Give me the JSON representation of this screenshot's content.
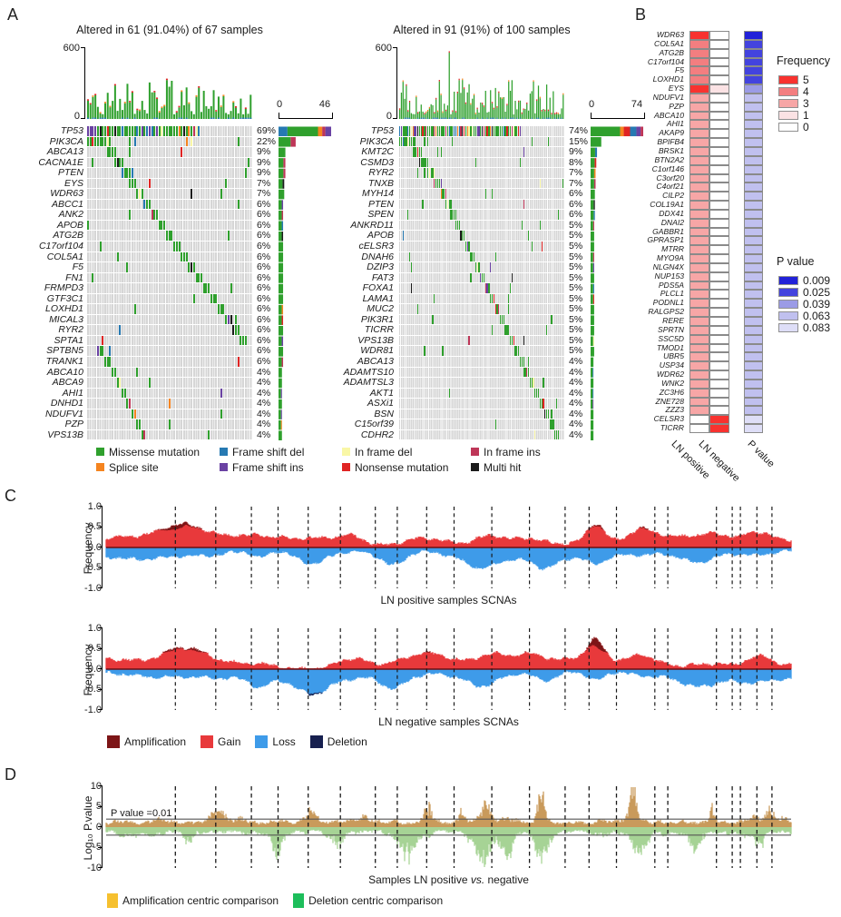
{
  "panels": {
    "a": "A",
    "b": "B",
    "c": "C",
    "d": "D"
  },
  "colors": {
    "mutation": {
      "missense": "#2FA02D",
      "splice": "#F5841F",
      "fs_del": "#2679B2",
      "fs_ins": "#6A42A3",
      "if_del": "#F9F7A6",
      "nonsense": "#E02423",
      "if_ins": "#BE3658",
      "multi": "#1C1C1C"
    },
    "grid_bg": "#D6D6D6",
    "scna": {
      "amplification": "#7D1517",
      "gain": "#E8393B",
      "loss": "#3E9BE9",
      "deletion": "#17204F"
    },
    "diff": {
      "up_bars": "#C99A5B",
      "down_bars": "#A6D395"
    }
  },
  "mutation_legend": [
    [
      "Missense mutation",
      "missense"
    ],
    [
      "Frame shift del",
      "fs_del"
    ],
    [
      "In frame del",
      "if_del"
    ],
    [
      "In frame ins",
      "if_ins"
    ],
    [
      "Splice site",
      "splice"
    ],
    [
      "Frame shift ins",
      "fs_ins"
    ],
    [
      "Nonsense mutation",
      "nonsense"
    ],
    [
      "Multi hit",
      "multi"
    ]
  ],
  "chromosome_boundaries": [
    0.101,
    0.16,
    0.212,
    0.251,
    0.295,
    0.342,
    0.393,
    0.425,
    0.468,
    0.508,
    0.563,
    0.618,
    0.67,
    0.705,
    0.745,
    0.801,
    0.82,
    0.891,
    0.914,
    0.926,
    0.95,
    0.972
  ],
  "chart_data": [
    {
      "id": "oncoprint-ln-positive",
      "type": "heatmap",
      "title": "Altered in 61 (91.04%) of 67 samples",
      "n_samples": 67,
      "tmb_axis": {
        "max": "600",
        "min": "0"
      },
      "bar_axis": {
        "min": "0",
        "max": "46"
      },
      "tp53_bar_segments": [
        [
          "fs_del",
          0.17
        ],
        [
          "missense",
          0.58
        ],
        [
          "splice",
          0.08
        ],
        [
          "if_ins",
          0.06
        ],
        [
          "fs_ins",
          0.11
        ]
      ],
      "genes": [
        [
          "TP53",
          "69%"
        ],
        [
          "PIK3CA",
          "22%"
        ],
        [
          "ABCA13",
          "9%"
        ],
        [
          "CACNA1E",
          "9%"
        ],
        [
          "PTEN",
          "9%"
        ],
        [
          "EYS",
          "7%"
        ],
        [
          "WDR63",
          "7%"
        ],
        [
          "ABCC1",
          "6%"
        ],
        [
          "ANK2",
          "6%"
        ],
        [
          "APOB",
          "6%"
        ],
        [
          "ATG2B",
          "6%"
        ],
        [
          "C17orf104",
          "6%"
        ],
        [
          "COL5A1",
          "6%"
        ],
        [
          "F5",
          "6%"
        ],
        [
          "FN1",
          "6%"
        ],
        [
          "FRMPD3",
          "6%"
        ],
        [
          "GTF3C1",
          "6%"
        ],
        [
          "LOXHD1",
          "6%"
        ],
        [
          "MICAL3",
          "6%"
        ],
        [
          "RYR2",
          "6%"
        ],
        [
          "SPTA1",
          "6%"
        ],
        [
          "SPTBN5",
          "6%"
        ],
        [
          "TRANK1",
          "6%"
        ],
        [
          "ABCA10",
          "4%"
        ],
        [
          "ABCA9",
          "4%"
        ],
        [
          "AHI1",
          "4%"
        ],
        [
          "DNHD1",
          "4%"
        ],
        [
          "NDUFV1",
          "4%"
        ],
        [
          "PZP",
          "4%"
        ],
        [
          "VPS13B",
          "4%"
        ]
      ]
    },
    {
      "id": "oncoprint-ln-negative",
      "type": "heatmap",
      "title": "Altered in 91 (91%) of 100 samples",
      "n_samples": 100,
      "tmb_axis": {
        "max": "600",
        "min": "0"
      },
      "bar_axis": {
        "min": "0",
        "max": "74"
      },
      "tp53_bar_segments": [
        [
          "missense",
          0.56
        ],
        [
          "splice",
          0.07
        ],
        [
          "nonsense",
          0.12
        ],
        [
          "fs_del",
          0.12
        ],
        [
          "fs_ins",
          0.08
        ],
        [
          "if_ins",
          0.05
        ]
      ],
      "genes": [
        [
          "TP53",
          "74%"
        ],
        [
          "PIK3CA",
          "15%"
        ],
        [
          "KMT2C",
          "9%"
        ],
        [
          "CSMD3",
          "8%"
        ],
        [
          "RYR2",
          "7%"
        ],
        [
          "TNXB",
          "7%"
        ],
        [
          "MYH14",
          "6%"
        ],
        [
          "PTEN",
          "6%"
        ],
        [
          "SPEN",
          "6%"
        ],
        [
          "ANKRD11",
          "5%"
        ],
        [
          "APOB",
          "5%"
        ],
        [
          "cELSR3",
          "5%"
        ],
        [
          "DNAH6",
          "5%"
        ],
        [
          "DZIP3",
          "5%"
        ],
        [
          "FAT3",
          "5%"
        ],
        [
          "FOXA1",
          "5%"
        ],
        [
          "LAMA1",
          "5%"
        ],
        [
          "MUC2",
          "5%"
        ],
        [
          "PIK3R1",
          "5%"
        ],
        [
          "TICRR",
          "5%"
        ],
        [
          "VPS13B",
          "5%"
        ],
        [
          "WDR81",
          "5%"
        ],
        [
          "ABCA13",
          "4%"
        ],
        [
          "ADAMTS10",
          "4%"
        ],
        [
          "ADAMTSL3",
          "4%"
        ],
        [
          "AKT1",
          "4%"
        ],
        [
          "ASXi1",
          "4%"
        ],
        [
          "BSN",
          "4%"
        ],
        [
          "C15orf39",
          "4%"
        ],
        [
          "CDHR2",
          "4%"
        ]
      ]
    },
    {
      "id": "differential-mutation-heatmap",
      "type": "heatmap",
      "columns": [
        "LN positive",
        "LN negative",
        "P value"
      ],
      "frequency_legend": {
        "title": "Frequency",
        "levels": [
          [
            "5",
            "#F8322F"
          ],
          [
            "4",
            "#F37E80"
          ],
          [
            "3",
            "#F7A6A6"
          ],
          [
            "1",
            "#FBE2E4"
          ],
          [
            "0",
            "#FFFFFF"
          ]
        ]
      },
      "pvalue_legend": {
        "title": "P value",
        "levels": [
          [
            "0.009",
            "#2121D8"
          ],
          [
            "0.025",
            "#4343DE"
          ],
          [
            "0.039",
            "#9B9BE6"
          ],
          [
            "0.063",
            "#C0C0EF"
          ],
          [
            "0.083",
            "#DEDEF7"
          ]
        ]
      },
      "rows": [
        [
          "WDR63",
          "5",
          "0",
          "0.009"
        ],
        [
          "COL5A1",
          "4",
          "0",
          "0.025"
        ],
        [
          "ATG2B",
          "4",
          "0",
          "0.025"
        ],
        [
          "C17orf104",
          "4",
          "0",
          "0.025"
        ],
        [
          "F5",
          "4",
          "0",
          "0.025"
        ],
        [
          "LOXHD1",
          "4",
          "0",
          "0.025"
        ],
        [
          "EYS",
          "5",
          "1",
          "0.039"
        ],
        [
          "NDUFV1",
          "3",
          "0",
          "0.063"
        ],
        [
          "PZP",
          "3",
          "0",
          "0.063"
        ],
        [
          "ABCA10",
          "3",
          "0",
          "0.063"
        ],
        [
          "AHI1",
          "3",
          "0",
          "0.063"
        ],
        [
          "AKAP9",
          "3",
          "0",
          "0.063"
        ],
        [
          "BPIFB4",
          "3",
          "0",
          "0.063"
        ],
        [
          "BRSK1",
          "3",
          "0",
          "0.063"
        ],
        [
          "BTN2A2",
          "3",
          "0",
          "0.063"
        ],
        [
          "C1orf146",
          "3",
          "0",
          "0.063"
        ],
        [
          "C3orf20",
          "3",
          "0",
          "0.063"
        ],
        [
          "C4orf21",
          "3",
          "0",
          "0.063"
        ],
        [
          "CILP2",
          "3",
          "0",
          "0.063"
        ],
        [
          "COL19A1",
          "3",
          "0",
          "0.063"
        ],
        [
          "DDX41",
          "3",
          "0",
          "0.063"
        ],
        [
          "DNAI2",
          "3",
          "0",
          "0.063"
        ],
        [
          "GABBR1",
          "3",
          "0",
          "0.063"
        ],
        [
          "GPRASP1",
          "3",
          "0",
          "0.063"
        ],
        [
          "MTRR",
          "3",
          "0",
          "0.063"
        ],
        [
          "MYO9A",
          "3",
          "0",
          "0.063"
        ],
        [
          "NLGN4X",
          "3",
          "0",
          "0.063"
        ],
        [
          "NUP153",
          "3",
          "0",
          "0.063"
        ],
        [
          "PDS5A",
          "3",
          "0",
          "0.063"
        ],
        [
          "PLCL1",
          "3",
          "0",
          "0.063"
        ],
        [
          "PODNL1",
          "3",
          "0",
          "0.063"
        ],
        [
          "RALGPS2",
          "3",
          "0",
          "0.063"
        ],
        [
          "RERE",
          "3",
          "0",
          "0.063"
        ],
        [
          "SPRTN",
          "3",
          "0",
          "0.063"
        ],
        [
          "SSC5D",
          "3",
          "0",
          "0.063"
        ],
        [
          "TMOD1",
          "3",
          "0",
          "0.063"
        ],
        [
          "UBR5",
          "3",
          "0",
          "0.063"
        ],
        [
          "USP34",
          "3",
          "0",
          "0.063"
        ],
        [
          "WDR62",
          "3",
          "0",
          "0.063"
        ],
        [
          "WNK2",
          "3",
          "0",
          "0.063"
        ],
        [
          "ZC3H6",
          "3",
          "0",
          "0.063"
        ],
        [
          "ZNE728",
          "3",
          "0",
          "0.063"
        ],
        [
          "ZZZ3",
          "3",
          "0",
          "0.063"
        ],
        [
          "CELSR3",
          "0",
          "5",
          "0.083"
        ],
        [
          "TICRR",
          "0",
          "5",
          "0.083"
        ]
      ]
    },
    {
      "id": "scna-ln-positive",
      "type": "area",
      "xlabel": "LN positive samples SCNAs",
      "ylabel": "Frequency",
      "ylim": [
        -1,
        1
      ],
      "yticks": [
        "1.0",
        "0.5",
        "0.0",
        "-0.5",
        "-1.0"
      ],
      "legend": [
        [
          "Amplification",
          "#7D1517"
        ],
        [
          "Gain",
          "#E8393B"
        ],
        [
          "Loss",
          "#3E9BE9"
        ],
        [
          "Deletion",
          "#17204F"
        ]
      ],
      "note": "continuous gain/loss frequency profile across genome, chromosome boundaries dashed"
    },
    {
      "id": "scna-ln-negative",
      "type": "area",
      "xlabel": "LN negative samples SCNAs",
      "ylabel": "Frequency",
      "ylim": [
        -1,
        1
      ],
      "yticks": [
        "1.0",
        "0.5",
        "0.0",
        "-0.5",
        "-1.0"
      ]
    },
    {
      "id": "scna-differential",
      "type": "area",
      "xlabel_parts": [
        "Samples LN positive ",
        "vs.",
        " negative"
      ],
      "ylabel": "Log₁₀ P.value",
      "ylim": [
        -10,
        10
      ],
      "yticks": [
        "10",
        "5",
        "0",
        "-5",
        "-10"
      ],
      "annotation": "P value =0.01",
      "threshold_abs_log10": 2,
      "legend": [
        [
          "Amplification centric comparison",
          "#F6C02F"
        ],
        [
          "Deletion centric comparison",
          "#1DBE5B"
        ]
      ]
    }
  ]
}
